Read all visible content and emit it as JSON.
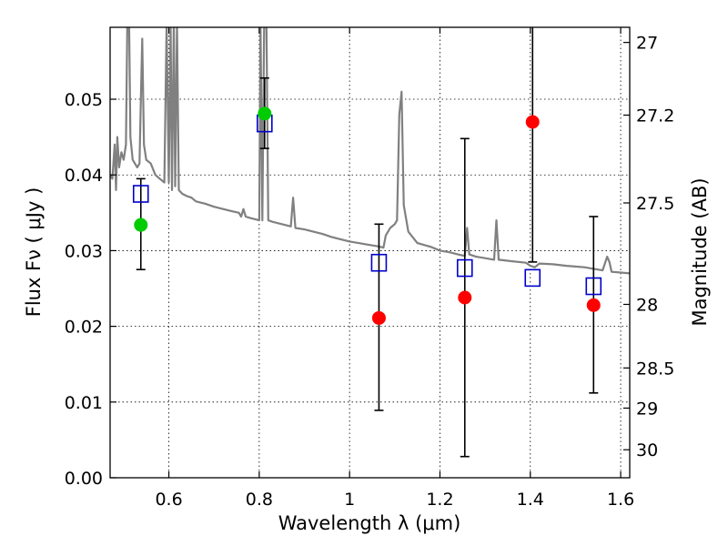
{
  "chart_data": {
    "type": "scatter",
    "title": "",
    "xlabel": "Wavelength  λ (μm)",
    "ylabel": "Flux  Fν  ( μJy )",
    "y2label": "Magnitude (AB)",
    "xlim": [
      0.47,
      1.62
    ],
    "ylim": [
      0.0,
      0.0595
    ],
    "grid": true,
    "x_ticks": [
      0.6,
      0.8,
      1.0,
      1.2,
      1.4,
      1.6
    ],
    "x_tick_labels": [
      "0.6",
      "0.8",
      "1",
      "1.2",
      "1.4",
      "1.6"
    ],
    "y_ticks": [
      0.0,
      0.01,
      0.02,
      0.03,
      0.04,
      0.05
    ],
    "y_tick_labels": [
      "0.00",
      "0.01",
      "0.02",
      "0.03",
      "0.04",
      "0.05"
    ],
    "y2_ticks": [
      {
        "label": "27",
        "flux": 0.0575
      },
      {
        "label": "27.2",
        "flux": 0.0479
      },
      {
        "label": "27.5",
        "flux": 0.0363
      },
      {
        "label": "28",
        "flux": 0.0229
      },
      {
        "label": "28.5",
        "flux": 0.0145
      },
      {
        "label": "29",
        "flux": 0.0092
      },
      {
        "label": "30",
        "flux": 0.0037
      }
    ],
    "spectrum": {
      "color": "#808080",
      "points": [
        [
          0.47,
          0.04
        ],
        [
          0.475,
          0.0395
        ],
        [
          0.48,
          0.044
        ],
        [
          0.483,
          0.038
        ],
        [
          0.486,
          0.045
        ],
        [
          0.49,
          0.041
        ],
        [
          0.495,
          0.043
        ],
        [
          0.5,
          0.042
        ],
        [
          0.505,
          0.044
        ],
        [
          0.508,
          0.06
        ],
        [
          0.512,
          0.06
        ],
        [
          0.515,
          0.045
        ],
        [
          0.52,
          0.042
        ],
        [
          0.53,
          0.041
        ],
        [
          0.535,
          0.0415
        ],
        [
          0.538,
          0.05
        ],
        [
          0.541,
          0.058
        ],
        [
          0.545,
          0.044
        ],
        [
          0.55,
          0.042
        ],
        [
          0.56,
          0.0415
        ],
        [
          0.57,
          0.04
        ],
        [
          0.58,
          0.0395
        ],
        [
          0.59,
          0.039
        ],
        [
          0.595,
          0.06
        ],
        [
          0.6,
          0.039
        ],
        [
          0.604,
          0.06
        ],
        [
          0.607,
          0.038
        ],
        [
          0.611,
          0.06
        ],
        [
          0.614,
          0.0385
        ],
        [
          0.618,
          0.06
        ],
        [
          0.622,
          0.038
        ],
        [
          0.63,
          0.0375
        ],
        [
          0.64,
          0.0372
        ],
        [
          0.65,
          0.037
        ],
        [
          0.66,
          0.0365
        ],
        [
          0.68,
          0.0362
        ],
        [
          0.7,
          0.0358
        ],
        [
          0.72,
          0.0355
        ],
        [
          0.74,
          0.0352
        ],
        [
          0.755,
          0.035
        ],
        [
          0.76,
          0.0345
        ],
        [
          0.765,
          0.0355
        ],
        [
          0.77,
          0.0345
        ],
        [
          0.78,
          0.0343
        ],
        [
          0.8,
          0.034
        ],
        [
          0.803,
          0.06
        ],
        [
          0.807,
          0.034
        ],
        [
          0.811,
          0.06
        ],
        [
          0.816,
          0.06
        ],
        [
          0.82,
          0.034
        ],
        [
          0.83,
          0.0338
        ],
        [
          0.85,
          0.0335
        ],
        [
          0.87,
          0.0332
        ],
        [
          0.875,
          0.037
        ],
        [
          0.88,
          0.033
        ],
        [
          0.9,
          0.0328
        ],
        [
          0.92,
          0.0325
        ],
        [
          0.94,
          0.0322
        ],
        [
          0.96,
          0.0318
        ],
        [
          0.98,
          0.0315
        ],
        [
          1.0,
          0.0312
        ],
        [
          1.02,
          0.031
        ],
        [
          1.04,
          0.0308
        ],
        [
          1.06,
          0.0306
        ],
        [
          1.075,
          0.0304
        ],
        [
          1.08,
          0.032
        ],
        [
          1.09,
          0.033
        ],
        [
          1.1,
          0.0335
        ],
        [
          1.105,
          0.034
        ],
        [
          1.11,
          0.048
        ],
        [
          1.115,
          0.051
        ],
        [
          1.12,
          0.036
        ],
        [
          1.13,
          0.0325
        ],
        [
          1.15,
          0.031
        ],
        [
          1.18,
          0.0305
        ],
        [
          1.2,
          0.03
        ],
        [
          1.22,
          0.0298
        ],
        [
          1.24,
          0.0295
        ],
        [
          1.255,
          0.0293
        ],
        [
          1.26,
          0.033
        ],
        [
          1.265,
          0.0295
        ],
        [
          1.28,
          0.0292
        ],
        [
          1.3,
          0.029
        ],
        [
          1.32,
          0.0288
        ],
        [
          1.325,
          0.034
        ],
        [
          1.33,
          0.0288
        ],
        [
          1.36,
          0.0286
        ],
        [
          1.39,
          0.0284
        ],
        [
          1.4,
          0.028
        ],
        [
          1.41,
          0.0278
        ],
        [
          1.42,
          0.0283
        ],
        [
          1.45,
          0.0282
        ],
        [
          1.48,
          0.028
        ],
        [
          1.5,
          0.0279
        ],
        [
          1.52,
          0.0278
        ],
        [
          1.54,
          0.0276
        ],
        [
          1.56,
          0.0274
        ],
        [
          1.57,
          0.0292
        ],
        [
          1.575,
          0.0285
        ],
        [
          1.58,
          0.0272
        ],
        [
          1.6,
          0.0271
        ],
        [
          1.62,
          0.027
        ]
      ]
    },
    "error_bars": [
      {
        "x": 0.538,
        "low": 0.0275,
        "high": 0.0395
      },
      {
        "x": 0.812,
        "low": 0.0435,
        "high": 0.0528
      },
      {
        "x": 1.065,
        "low": 0.0089,
        "high": 0.0335
      },
      {
        "x": 1.255,
        "low": 0.0028,
        "high": 0.0448
      },
      {
        "x": 1.405,
        "low": 0.0285,
        "high": 0.06
      },
      {
        "x": 1.54,
        "low": 0.0112,
        "high": 0.0345
      }
    ],
    "model_squares": {
      "color": "#0000cc",
      "points": [
        [
          0.538,
          0.0375
        ],
        [
          0.812,
          0.0468
        ],
        [
          1.065,
          0.0284
        ],
        [
          1.255,
          0.0277
        ],
        [
          1.405,
          0.0264
        ],
        [
          1.54,
          0.0253
        ]
      ]
    },
    "detections": {
      "color": "#00cc00",
      "points": [
        [
          0.538,
          0.0334
        ],
        [
          0.812,
          0.0481
        ]
      ]
    },
    "upper_limits": {
      "color": "#ff0000",
      "points": [
        [
          1.065,
          0.0211
        ],
        [
          1.255,
          0.0238
        ],
        [
          1.405,
          0.047
        ],
        [
          1.54,
          0.0228
        ]
      ]
    }
  }
}
